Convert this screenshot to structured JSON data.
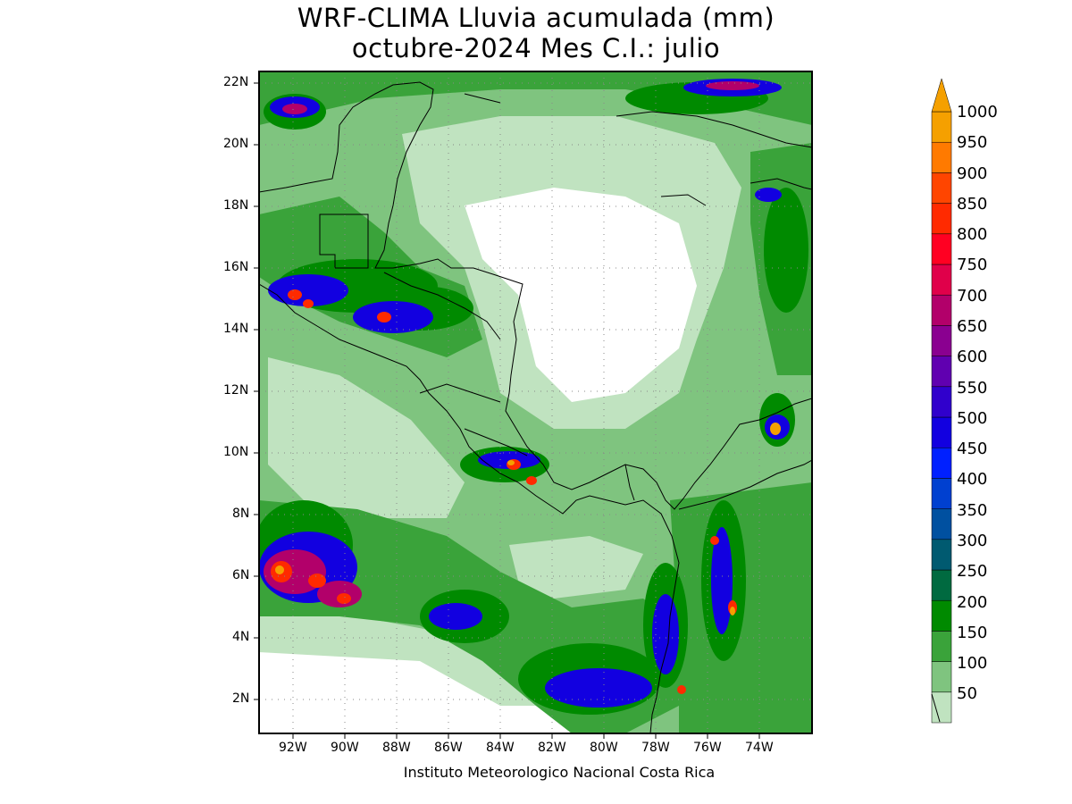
{
  "title_line1": "WRF-CLIMA Lluvia acumulada (mm)",
  "title_line2": "octubre-2024 Mes C.I.: julio",
  "footer": "Instituto Meteorologico Nacional Costa Rica",
  "lat_labels": [
    "22N",
    "20N",
    "18N",
    "16N",
    "14N",
    "12N",
    "10N",
    "8N",
    "6N",
    "4N",
    "2N"
  ],
  "lon_labels": [
    "92W",
    "90W",
    "88W",
    "86W",
    "84W",
    "82W",
    "80W",
    "78W",
    "76W",
    "74W"
  ],
  "colorbar": {
    "labels": [
      "1000",
      "950",
      "900",
      "850",
      "800",
      "750",
      "700",
      "650",
      "600",
      "550",
      "500",
      "450",
      "400",
      "350",
      "300",
      "250",
      "200",
      "150",
      "100",
      "50"
    ],
    "colors": [
      "#f5a000",
      "#ff7a00",
      "#ff4500",
      "#ff2a00",
      "#ff0022",
      "#e0004a",
      "#b2006a",
      "#8a0090",
      "#6000b0",
      "#3000cc",
      "#1200e0",
      "#0020ff",
      "#0040d0",
      "#0050a0",
      "#005a70",
      "#006a40",
      "#008a00",
      "#3aa33a",
      "#7fc47f",
      "#c0e3c0"
    ]
  }
}
